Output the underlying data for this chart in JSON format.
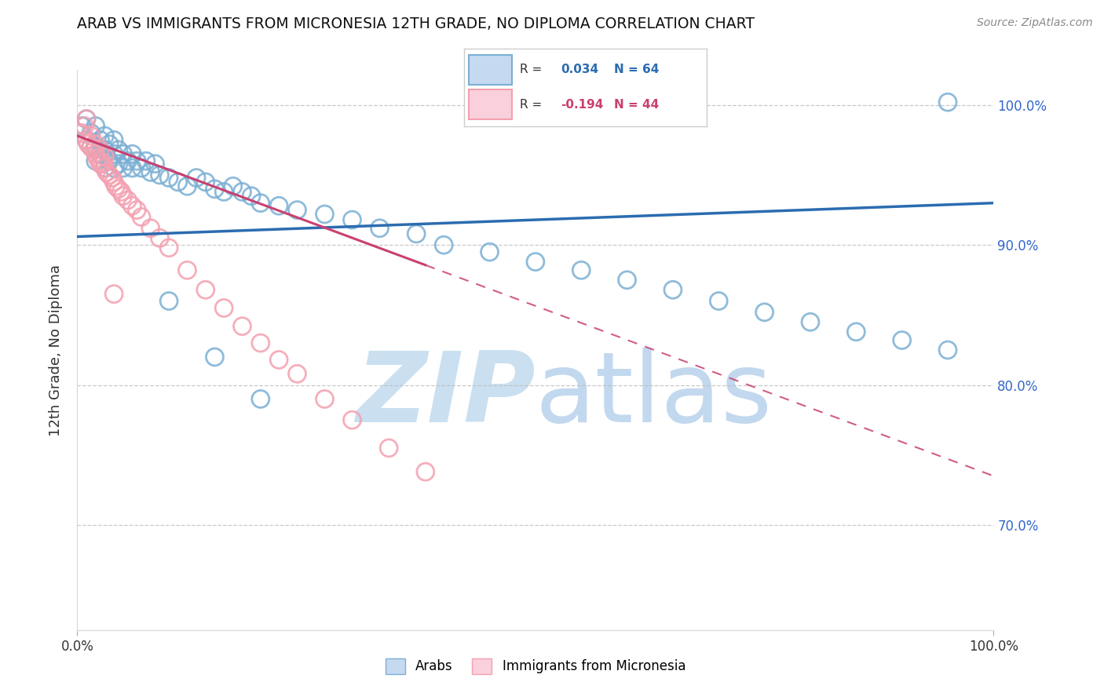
{
  "title": "ARAB VS IMMIGRANTS FROM MICRONESIA 12TH GRADE, NO DIPLOMA CORRELATION CHART",
  "source": "Source: ZipAtlas.com",
  "ylabel": "12th Grade, No Diploma",
  "xlim": [
    0.0,
    1.0
  ],
  "ylim": [
    0.625,
    1.025
  ],
  "yticks": [
    0.7,
    0.8,
    0.9,
    1.0
  ],
  "ytick_labels": [
    "70.0%",
    "80.0%",
    "90.0%",
    "100.0%"
  ],
  "blue_R": 0.034,
  "blue_N": 64,
  "pink_R": -0.194,
  "pink_N": 44,
  "blue_scatter_color": "#7BAFD4",
  "pink_scatter_color": "#F4A0B0",
  "blue_line_color": "#2B6CB0",
  "pink_line_color": "#C94070",
  "watermark_color": "#C5DDF0",
  "legend_blue_label": "Arabs",
  "legend_pink_label": "Immigrants from Micronesia",
  "blue_R_color": "#2B6CB0",
  "pink_R_color": "#C94070",
  "blue_scatter_x": [
    0.005,
    0.01,
    0.01,
    0.015,
    0.015,
    0.02,
    0.02,
    0.02,
    0.025,
    0.025,
    0.03,
    0.03,
    0.03,
    0.035,
    0.035,
    0.04,
    0.04,
    0.04,
    0.045,
    0.045,
    0.05,
    0.05,
    0.055,
    0.06,
    0.06,
    0.065,
    0.07,
    0.075,
    0.08,
    0.085,
    0.09,
    0.1,
    0.11,
    0.12,
    0.13,
    0.14,
    0.15,
    0.16,
    0.17,
    0.18,
    0.19,
    0.2,
    0.22,
    0.24,
    0.27,
    0.3,
    0.33,
    0.37,
    0.4,
    0.45,
    0.5,
    0.55,
    0.6,
    0.65,
    0.7,
    0.75,
    0.8,
    0.85,
    0.9,
    0.95,
    0.1,
    0.15,
    0.2,
    0.95
  ],
  "blue_scatter_y": [
    0.985,
    0.975,
    0.99,
    0.97,
    0.98,
    0.96,
    0.97,
    0.985,
    0.965,
    0.975,
    0.955,
    0.968,
    0.978,
    0.96,
    0.972,
    0.955,
    0.965,
    0.975,
    0.958,
    0.968,
    0.955,
    0.965,
    0.96,
    0.955,
    0.965,
    0.96,
    0.955,
    0.96,
    0.952,
    0.958,
    0.95,
    0.948,
    0.945,
    0.942,
    0.948,
    0.945,
    0.94,
    0.938,
    0.942,
    0.938,
    0.935,
    0.93,
    0.928,
    0.925,
    0.922,
    0.918,
    0.912,
    0.908,
    0.9,
    0.895,
    0.888,
    0.882,
    0.875,
    0.868,
    0.86,
    0.852,
    0.845,
    0.838,
    0.832,
    0.825,
    0.86,
    0.82,
    0.79,
    1.002
  ],
  "pink_scatter_x": [
    0.005,
    0.008,
    0.01,
    0.012,
    0.015,
    0.015,
    0.018,
    0.02,
    0.02,
    0.022,
    0.025,
    0.025,
    0.028,
    0.03,
    0.03,
    0.032,
    0.035,
    0.038,
    0.04,
    0.042,
    0.045,
    0.048,
    0.05,
    0.055,
    0.06,
    0.065,
    0.07,
    0.08,
    0.09,
    0.1,
    0.12,
    0.14,
    0.16,
    0.18,
    0.2,
    0.22,
    0.24,
    0.27,
    0.3,
    0.34,
    0.38,
    0.04,
    0.025,
    0.01
  ],
  "pink_scatter_y": [
    0.98,
    0.985,
    0.975,
    0.972,
    0.97,
    0.978,
    0.968,
    0.965,
    0.972,
    0.962,
    0.96,
    0.968,
    0.958,
    0.955,
    0.963,
    0.952,
    0.95,
    0.948,
    0.945,
    0.942,
    0.94,
    0.938,
    0.935,
    0.932,
    0.928,
    0.925,
    0.92,
    0.912,
    0.905,
    0.898,
    0.882,
    0.868,
    0.855,
    0.842,
    0.83,
    0.818,
    0.808,
    0.79,
    0.775,
    0.755,
    0.738,
    0.865,
    0.958,
    0.99
  ]
}
